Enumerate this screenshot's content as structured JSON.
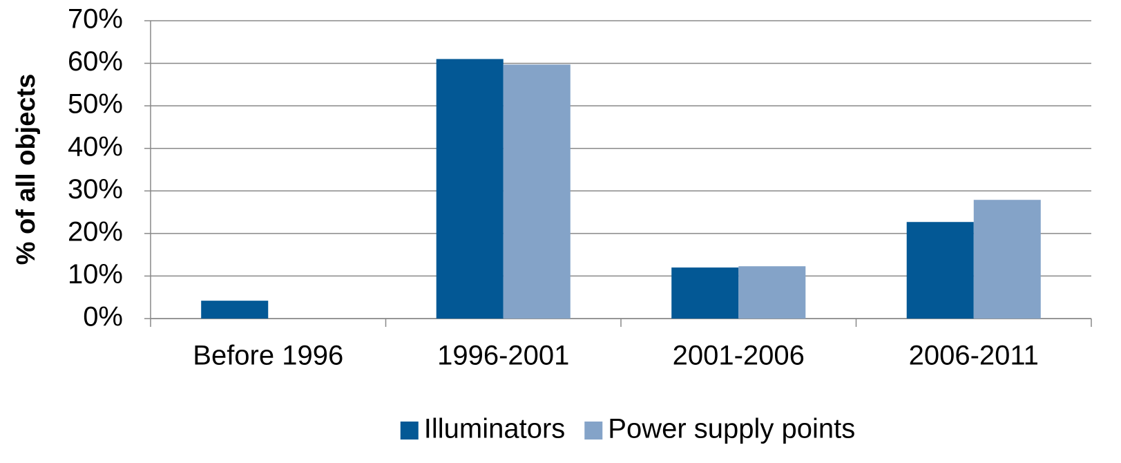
{
  "chart_data": {
    "type": "bar",
    "y_label": "% of all objects",
    "categories": [
      "Before 1996",
      "1996-2001",
      "2001-2006",
      "2006-2011"
    ],
    "series": [
      {
        "name": "Illuminators",
        "color": "#035895",
        "values": [
          4.2,
          61,
          12,
          22.7
        ]
      },
      {
        "name": "Power supply points",
        "color": "#84a3c8",
        "values": [
          0,
          59.7,
          12.3,
          27.9
        ]
      }
    ],
    "ylim": [
      0,
      70
    ],
    "yticks": [
      {
        "value": 0,
        "label": "0%"
      },
      {
        "value": 10,
        "label": "10%"
      },
      {
        "value": 20,
        "label": "20%"
      },
      {
        "value": 30,
        "label": "30%"
      },
      {
        "value": 40,
        "label": "40%"
      },
      {
        "value": 50,
        "label": "50%"
      },
      {
        "value": 60,
        "label": "60%"
      },
      {
        "value": 70,
        "label": "70%"
      }
    ],
    "grid": true,
    "legend": "bottom"
  }
}
